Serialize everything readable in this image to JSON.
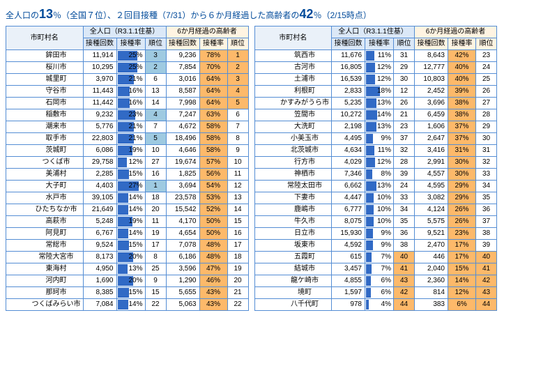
{
  "title_parts": [
    "全人口の",
    "13",
    "％（全国７位）、２回目接種（7/31）から６か月経過した高齢者の",
    "42",
    "％（2/15時点）"
  ],
  "headers": {
    "city": "市町村名",
    "grp1": "全人口（R3.1.1住基）",
    "grp2": "6か月経過の高齢者",
    "cnt": "接種回数",
    "rate": "接種率",
    "rank": "順位"
  },
  "colors": {
    "bar": "#316ac5",
    "hl_blue": "#9ecae1",
    "hl_orange": "#fdb96a"
  },
  "left": [
    {
      "n": "鉾田市",
      "c1": 11914,
      "r1": 25,
      "k1": 3,
      "h1": "b",
      "c2": 9236,
      "r2": 78,
      "k2": 1,
      "h2": "o"
    },
    {
      "n": "桜川市",
      "c1": 10295,
      "r1": 25,
      "k1": 2,
      "h1": "b",
      "c2": 7854,
      "r2": 70,
      "k2": 2,
      "h2": "o"
    },
    {
      "n": "城里町",
      "c1": 3970,
      "r1": 21,
      "k1": 6,
      "c2": 3016,
      "r2": 64,
      "k2": 3,
      "h2": "o"
    },
    {
      "n": "守谷市",
      "c1": 11443,
      "r1": 16,
      "k1": 13,
      "c2": 8587,
      "r2": 64,
      "k2": 4,
      "h2": "o"
    },
    {
      "n": "石岡市",
      "c1": 11442,
      "r1": 16,
      "k1": 14,
      "c2": 7998,
      "r2": 64,
      "k2": 5,
      "h2": "o"
    },
    {
      "n": "稲敷市",
      "c1": 9232,
      "r1": 23,
      "k1": 4,
      "h1": "b",
      "c2": 7247,
      "r2": 63,
      "k2": 6
    },
    {
      "n": "潮来市",
      "c1": 5776,
      "r1": 21,
      "k1": 7,
      "c2": 4672,
      "r2": 58,
      "k2": 7
    },
    {
      "n": "取手市",
      "c1": 22803,
      "r1": 21,
      "k1": 5,
      "h1": "b",
      "c2": 18496,
      "r2": 58,
      "k2": 8
    },
    {
      "n": "茨城町",
      "c1": 6086,
      "r1": 19,
      "k1": 10,
      "c2": 4646,
      "r2": 58,
      "k2": 9
    },
    {
      "n": "つくば市",
      "c1": 29758,
      "r1": 12,
      "k1": 27,
      "c2": 19674,
      "r2": 57,
      "k2": 10
    },
    {
      "n": "美浦村",
      "c1": 2285,
      "r1": 15,
      "k1": 16,
      "c2": 1825,
      "r2": 56,
      "k2": 11
    },
    {
      "n": "大子町",
      "c1": 4403,
      "r1": 27,
      "k1": 1,
      "h1": "b",
      "c2": 3694,
      "r2": 54,
      "k2": 12
    },
    {
      "n": "水戸市",
      "c1": 39105,
      "r1": 14,
      "k1": 18,
      "c2": 23578,
      "r2": 53,
      "k2": 13
    },
    {
      "n": "ひたちなか市",
      "c1": 21649,
      "r1": 14,
      "k1": 20,
      "c2": 15542,
      "r2": 52,
      "k2": 14
    },
    {
      "n": "高萩市",
      "c1": 5248,
      "r1": 19,
      "k1": 11,
      "c2": 4170,
      "r2": 50,
      "k2": 15
    },
    {
      "n": "阿見町",
      "c1": 6767,
      "r1": 14,
      "k1": 19,
      "c2": 4654,
      "r2": 50,
      "k2": 16
    },
    {
      "n": "常総市",
      "c1": 9524,
      "r1": 15,
      "k1": 17,
      "c2": 7078,
      "r2": 48,
      "k2": 17
    },
    {
      "n": "常陸大宮市",
      "c1": 8173,
      "r1": 20,
      "k1": 8,
      "c2": 6186,
      "r2": 48,
      "k2": 18
    },
    {
      "n": "東海村",
      "c1": 4950,
      "r1": 13,
      "k1": 25,
      "c2": 3596,
      "r2": 47,
      "k2": 19
    },
    {
      "n": "河内町",
      "c1": 1690,
      "r1": 20,
      "k1": 9,
      "c2": 1290,
      "r2": 46,
      "k2": 20
    },
    {
      "n": "那珂市",
      "c1": 8385,
      "r1": 15,
      "k1": 15,
      "c2": 5655,
      "r2": 43,
      "k2": 21
    },
    {
      "n": "つくばみらい市",
      "c1": 7084,
      "r1": 14,
      "k1": 22,
      "c2": 5063,
      "r2": 43,
      "k2": 22
    }
  ],
  "right": [
    {
      "n": "筑西市",
      "c1": 11676,
      "r1": 11,
      "k1": 31,
      "c2": 8643,
      "r2": 42,
      "k2": 23
    },
    {
      "n": "古河市",
      "c1": 16805,
      "r1": 12,
      "k1": 29,
      "c2": 12777,
      "r2": 40,
      "k2": 24
    },
    {
      "n": "土浦市",
      "c1": 16539,
      "r1": 12,
      "k1": 30,
      "c2": 10803,
      "r2": 40,
      "k2": 25
    },
    {
      "n": "利根町",
      "c1": 2833,
      "r1": 18,
      "k1": 12,
      "c2": 2452,
      "r2": 39,
      "k2": 26
    },
    {
      "n": "かすみがうら市",
      "c1": 5235,
      "r1": 13,
      "k1": 26,
      "c2": 3696,
      "r2": 38,
      "k2": 27
    },
    {
      "n": "笠間市",
      "c1": 10272,
      "r1": 14,
      "k1": 21,
      "c2": 6459,
      "r2": 38,
      "k2": 28
    },
    {
      "n": "大洗町",
      "c1": 2198,
      "r1": 13,
      "k1": 23,
      "c2": 1606,
      "r2": 37,
      "k2": 29
    },
    {
      "n": "小美玉市",
      "c1": 4495,
      "r1": 9,
      "k1": 37,
      "c2": 2647,
      "r2": 37,
      "k2": 30
    },
    {
      "n": "北茨城市",
      "c1": 4634,
      "r1": 11,
      "k1": 32,
      "c2": 3416,
      "r2": 31,
      "k2": 31
    },
    {
      "n": "行方市",
      "c1": 4029,
      "r1": 12,
      "k1": 28,
      "c2": 2991,
      "r2": 30,
      "k2": 32
    },
    {
      "n": "神栖市",
      "c1": 7346,
      "r1": 8,
      "k1": 39,
      "c2": 4557,
      "r2": 30,
      "k2": 33
    },
    {
      "n": "常陸太田市",
      "c1": 6662,
      "r1": 13,
      "k1": 24,
      "c2": 4595,
      "r2": 29,
      "k2": 34
    },
    {
      "n": "下妻市",
      "c1": 4447,
      "r1": 10,
      "k1": 33,
      "c2": 3082,
      "r2": 29,
      "k2": 35
    },
    {
      "n": "鹿嶋市",
      "c1": 6777,
      "r1": 10,
      "k1": 34,
      "c2": 4124,
      "r2": 26,
      "k2": 36
    },
    {
      "n": "牛久市",
      "c1": 8075,
      "r1": 10,
      "k1": 35,
      "c2": 5575,
      "r2": 26,
      "k2": 37
    },
    {
      "n": "日立市",
      "c1": 15930,
      "r1": 9,
      "k1": 36,
      "c2": 9521,
      "r2": 23,
      "k2": 38
    },
    {
      "n": "坂東市",
      "c1": 4592,
      "r1": 9,
      "k1": 38,
      "c2": 2470,
      "r2": 17,
      "k2": 39
    },
    {
      "n": "五霞町",
      "c1": 615,
      "r1": 7,
      "k1": 40,
      "h1": "o",
      "c2": 446,
      "r2": 17,
      "k2": 40,
      "h2": "o"
    },
    {
      "n": "結城市",
      "c1": 3457,
      "r1": 7,
      "k1": 41,
      "h1": "o",
      "c2": 2040,
      "r2": 15,
      "k2": 41,
      "h2": "o"
    },
    {
      "n": "龍ケ崎市",
      "c1": 4855,
      "r1": 6,
      "k1": 43,
      "h1": "o",
      "c2": 2360,
      "r2": 14,
      "k2": 42,
      "h2": "o"
    },
    {
      "n": "境町",
      "c1": 1597,
      "r1": 6,
      "k1": 42,
      "h1": "o",
      "c2": 814,
      "r2": 12,
      "k2": 43,
      "h2": "o"
    },
    {
      "n": "八千代町",
      "c1": 978,
      "r1": 4,
      "k1": 44,
      "h1": "o",
      "c2": 383,
      "r2": 6,
      "k2": 44,
      "h2": "o"
    }
  ]
}
